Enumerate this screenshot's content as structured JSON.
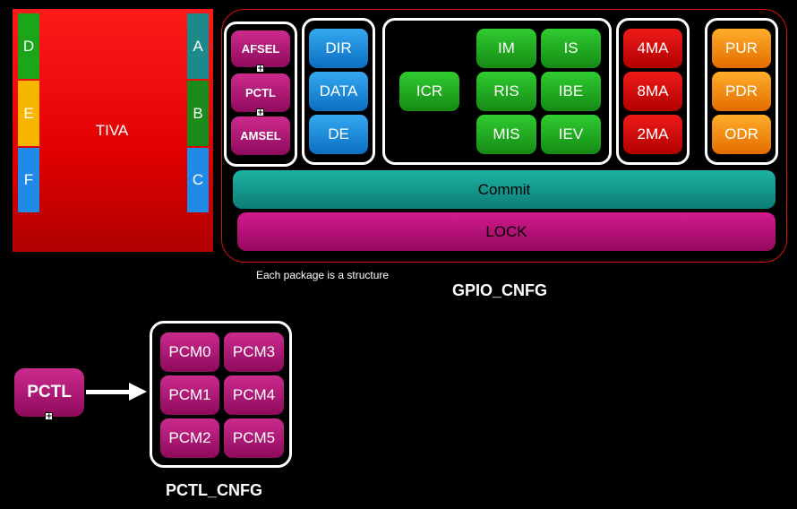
{
  "tiva": {
    "label": "TIVA",
    "ports_left": [
      "D",
      "E",
      "F"
    ],
    "ports_right": [
      "A",
      "B",
      "C"
    ]
  },
  "gpio": {
    "pin_functions": [
      "AFSEL",
      "PCTL",
      "AMSEL"
    ],
    "direction": [
      "DIR",
      "DATA",
      "DE"
    ],
    "interrupts": {
      "icr": "ICR",
      "grid": [
        "IM",
        "IS",
        "RIS",
        "IBE",
        "MIS",
        "IEV"
      ]
    },
    "drive": [
      "4MA",
      "8MA",
      "2MA"
    ],
    "pull": [
      "PUR",
      "PDR",
      "ODR"
    ],
    "commit": "Commit",
    "lock": "LOCK",
    "note": "Each package is a structure",
    "title": "GPIO_CNFG"
  },
  "pctl": {
    "label": "PCTL",
    "modules": [
      "PCM0",
      "PCM3",
      "PCM1",
      "PCM4",
      "PCM2",
      "PCM5"
    ],
    "title": "PCTL_CNFG"
  },
  "colors": {
    "chip_red": "#ff1a1a",
    "outline_red": "#dd1111",
    "magenta": "#b0167a",
    "blue": "#1f8be6",
    "green": "#1faa1f",
    "drive_red": "#d40000",
    "orange": "#f58a00",
    "teal": "#149d90"
  },
  "icons": {
    "expand": "plus-box-icon",
    "arrow": "right-arrow-icon"
  }
}
